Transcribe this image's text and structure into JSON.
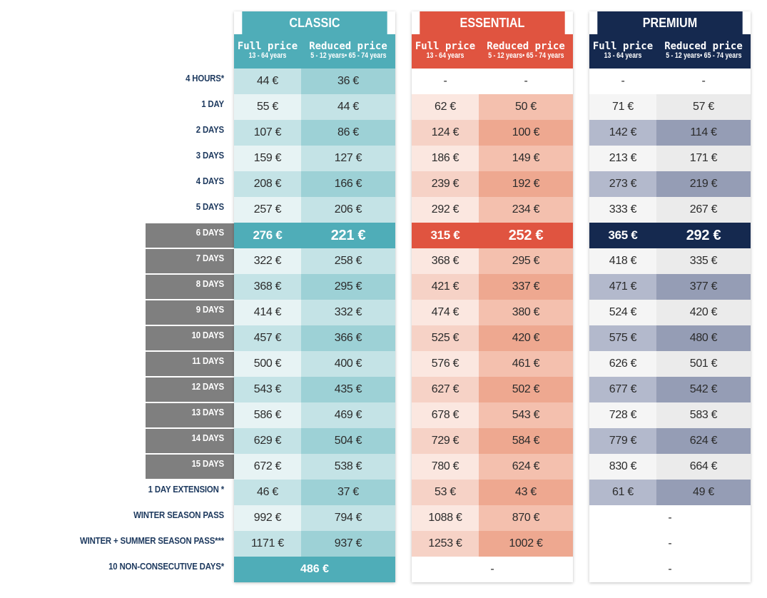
{
  "labels": [
    "4 HOURS*",
    "1 DAY",
    "2 DAYS",
    "3 DAYS",
    "4 DAYS",
    "5 DAYS",
    "6 DAYS",
    "7 DAYS",
    "8 DAYS",
    "9 DAYS",
    "10 DAYS",
    "11 DAYS",
    "12 DAYS",
    "13 DAYS",
    "14 DAYS",
    "15 DAYS",
    "1 DAY EXTENSION *",
    "WINTER SEASON PASS",
    "WINTER + SUMMER SEASON PASS***",
    "10 NON-CONSECUTIVE DAYS*"
  ],
  "columns": {
    "classic": {
      "title": "CLASSIC",
      "full_label": "Full price",
      "full_ages": "13 - 64 years",
      "reduced_label": "Reduced price",
      "reduced_ages": "5 - 12 years• 65 - 74 years",
      "full": [
        "44 €",
        "55 €",
        "107 €",
        "159 €",
        "208 €",
        "257 €",
        "276 €",
        "322 €",
        "368 €",
        "414 €",
        "457 €",
        "500 €",
        "543 €",
        "586 €",
        "629 €",
        "672 €",
        "46 €",
        "992 €",
        "1171 €"
      ],
      "reduced": [
        "36 €",
        "44 €",
        "86 €",
        "127 €",
        "166 €",
        "206 €",
        "221 €",
        "258 €",
        "295 €",
        "332 €",
        "366 €",
        "400 €",
        "435 €",
        "469 €",
        "504 €",
        "538 €",
        "37 €",
        "794 €",
        "937 €"
      ],
      "non_consecutive": "486 €"
    },
    "essential": {
      "title": "ESSENTIAL",
      "full_label": "Full price",
      "full_ages": "13 - 64 years",
      "reduced_label": "Reduced price",
      "reduced_ages": "5 - 12 years• 65 - 74 years",
      "full": [
        "-",
        "62 €",
        "124 €",
        "186 €",
        "239 €",
        "292 €",
        "315 €",
        "368 €",
        "421 €",
        "474 €",
        "525 €",
        "576 €",
        "627 €",
        "678 €",
        "729 €",
        "780 €",
        "53 €",
        "1088 €",
        "1253 €"
      ],
      "reduced": [
        "-",
        "50 €",
        "100 €",
        "149 €",
        "192 €",
        "234 €",
        "252 €",
        "295 €",
        "337 €",
        "380 €",
        "420 €",
        "461 €",
        "502 €",
        "543 €",
        "584 €",
        "624 €",
        "43 €",
        "870 €",
        "1002 €"
      ],
      "non_consecutive": "-"
    },
    "premium": {
      "title": "PREMIUM",
      "full_label": "Full price",
      "full_ages": "13 - 64 years",
      "reduced_label": "Reduced price",
      "reduced_ages": "5 - 12 years• 65 - 74 years",
      "full": [
        "-",
        "71 €",
        "142 €",
        "213 €",
        "273 €",
        "333 €",
        "365 €",
        "418 €",
        "471 €",
        "524 €",
        "575 €",
        "626 €",
        "677 €",
        "728 €",
        "779 €",
        "830 €",
        "61 €"
      ],
      "reduced": [
        "-",
        "57 €",
        "114 €",
        "171 €",
        "219 €",
        "267 €",
        "292 €",
        "335 €",
        "377 €",
        "420 €",
        "480 €",
        "501 €",
        "542 €",
        "583 €",
        "624 €",
        "664 €",
        "49 €"
      ],
      "winter_pass": "-",
      "winter_summer_pass": "-",
      "non_consecutive": "-"
    }
  },
  "colors": {
    "classic_header": "#4fadb8",
    "essential_header": "#e05440",
    "premium_header": "#15294f",
    "label_text": "#1e3a5f",
    "grey_label_bg": "#7f7f7f"
  }
}
